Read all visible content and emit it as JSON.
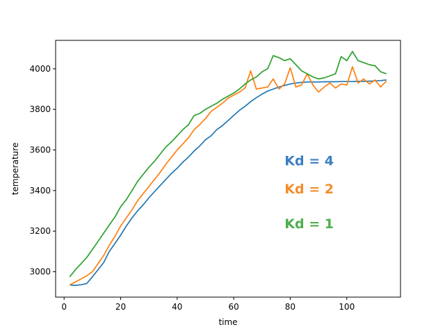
{
  "chart_data": {
    "type": "line",
    "title": "",
    "xlabel": "time",
    "ylabel": "temperature",
    "xlim": [
      -3,
      119
    ],
    "ylim": [
      2875,
      4140
    ],
    "xticks": [
      0,
      20,
      40,
      60,
      80,
      100
    ],
    "yticks": [
      3000,
      3200,
      3400,
      3600,
      3800,
      4000
    ],
    "grid": false,
    "legend": "none",
    "annotations": [
      {
        "text": "Kd = 4",
        "x": 78,
        "y": 3525,
        "color": "#3b7fc2"
      },
      {
        "text": "Kd = 2",
        "x": 78,
        "y": 3385,
        "color": "#f28e2b"
      },
      {
        "text": "Kd = 1",
        "x": 78,
        "y": 3215,
        "color": "#4cae4c"
      }
    ],
    "series": [
      {
        "color": "#1f77b4",
        "x": [
          2,
          4,
          6,
          8,
          10,
          12,
          14,
          16,
          18,
          20,
          22,
          24,
          26,
          28,
          30,
          32,
          34,
          36,
          38,
          40,
          42,
          44,
          46,
          48,
          50,
          52,
          54,
          56,
          58,
          60,
          62,
          64,
          66,
          68,
          70,
          72,
          74,
          76,
          78,
          80,
          82,
          84,
          86,
          88,
          90,
          92,
          94,
          96,
          98,
          100,
          102,
          104,
          106,
          108,
          110,
          112,
          114
        ],
        "values": [
          2935,
          2933,
          2936,
          2942,
          2975,
          3010,
          3045,
          3100,
          3140,
          3180,
          3225,
          3265,
          3300,
          3330,
          3365,
          3395,
          3425,
          3455,
          3485,
          3510,
          3540,
          3565,
          3595,
          3620,
          3650,
          3670,
          3700,
          3720,
          3745,
          3770,
          3795,
          3815,
          3838,
          3858,
          3875,
          3890,
          3900,
          3910,
          3918,
          3925,
          3930,
          3933,
          3935,
          3935,
          3935,
          3936,
          3936,
          3936,
          3937,
          3937,
          3937,
          3938,
          3938,
          3939,
          3940,
          3942,
          3945
        ]
      },
      {
        "color": "#ff7f0e",
        "x": [
          2,
          4,
          6,
          8,
          10,
          12,
          14,
          16,
          18,
          20,
          22,
          24,
          26,
          28,
          30,
          32,
          34,
          36,
          38,
          40,
          42,
          44,
          46,
          48,
          50,
          52,
          54,
          56,
          58,
          60,
          62,
          64,
          66,
          68,
          70,
          72,
          74,
          76,
          78,
          80,
          82,
          84,
          86,
          88,
          90,
          92,
          94,
          96,
          98,
          100,
          102,
          104,
          106,
          108,
          110,
          112,
          114
        ],
        "values": [
          2935,
          2950,
          2965,
          2980,
          3000,
          3040,
          3080,
          3130,
          3175,
          3225,
          3265,
          3305,
          3350,
          3385,
          3420,
          3455,
          3490,
          3530,
          3565,
          3600,
          3630,
          3660,
          3700,
          3725,
          3755,
          3790,
          3810,
          3830,
          3855,
          3870,
          3885,
          3905,
          3990,
          3900,
          3905,
          3910,
          3950,
          3900,
          3925,
          4005,
          3910,
          3920,
          3975,
          3920,
          3885,
          3910,
          3930,
          3905,
          3925,
          3920,
          4010,
          3930,
          3950,
          3925,
          3945,
          3910,
          3940
        ]
      },
      {
        "color": "#2ca02c",
        "x": [
          2,
          4,
          6,
          8,
          10,
          12,
          14,
          16,
          18,
          20,
          22,
          24,
          26,
          28,
          30,
          32,
          34,
          36,
          38,
          40,
          42,
          44,
          46,
          48,
          50,
          52,
          54,
          56,
          58,
          60,
          62,
          64,
          66,
          68,
          70,
          72,
          74,
          76,
          78,
          80,
          82,
          84,
          86,
          88,
          90,
          92,
          94,
          96,
          98,
          100,
          102,
          104,
          106,
          108,
          110,
          112,
          114
        ],
        "values": [
          2975,
          3010,
          3040,
          3070,
          3110,
          3150,
          3190,
          3230,
          3270,
          3320,
          3355,
          3400,
          3445,
          3480,
          3515,
          3545,
          3580,
          3615,
          3640,
          3670,
          3700,
          3725,
          3770,
          3780,
          3800,
          3815,
          3830,
          3850,
          3865,
          3880,
          3900,
          3925,
          3945,
          3960,
          3985,
          4000,
          4065,
          4055,
          4040,
          4050,
          4020,
          3990,
          3975,
          3960,
          3950,
          3955,
          3965,
          3975,
          4060,
          4040,
          4085,
          4040,
          4030,
          4020,
          4015,
          3985,
          3975
        ]
      }
    ]
  }
}
